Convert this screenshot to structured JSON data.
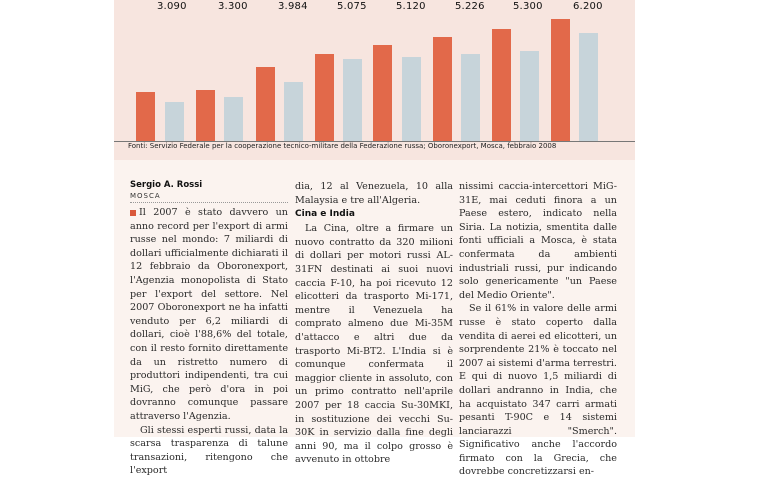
{
  "chart": {
    "values": [
      "3.090",
      "3.300",
      "3.984",
      "5.075",
      "5.120",
      "5.226",
      "5.300",
      "6.200"
    ],
    "source": "Fonti: Servizio Federale per la cooperazione tecnico-militare della Federazione russa; Oboronexport, Mosca, febbraio 2008",
    "colors": {
      "red": "#e2694a",
      "grey": "#c7d4da"
    }
  },
  "article": {
    "author": "Sergio A. Rossi",
    "dateline": "MOSCA",
    "col1": [
      "Il 2007 è stato davvero un anno record per l'export di armi russe nel mondo: 7 miliardi di dollari ufficialmente dichiarati il 12 febbraio da Oboronexport, l'Agenzia monopolista di Stato per l'export del settore. Nel 2007 Oboronexport ne ha infatti venduto per 6,2 miliardi di dollari, cioè l'88,6% del totale, con il resto fornito direttamente da un ristretto numero di produttori indipendenti, tra cui MiG, che però d'ora in poi dovranno comunque passare attraverso l'Agenzia.",
      "Gli stessi esperti russi, data la scarsa trasparenza di talune transazioni, ritengono che l'export"
    ],
    "col2_top": "dia, 12 al Venezuela, 10 alla Malaysia e tre all'Algeria.",
    "subhead": "Cina e India",
    "col2": "La Cina, oltre a firmare un nuovo contratto da 320 milioni di dollari per motori russi AL-31FN destinati ai suoi nuovi caccia F-10, ha poi ricevuto 12 elicotteri da trasporto Mi-171, mentre il Venezuela ha comprato almeno due Mi-35M d'attacco e altri due da trasporto Mi-BT2. L'India si è comunque confermata il maggior cliente in assoluto, con un primo contratto nell'aprile 2007 per 18 caccia Su-30MKI, in sostituzione dei vecchi Su-30K in servizio dalla fine degli anni 90, ma il colpo grosso è avvenuto in ottobre",
    "col3": [
      "nissimi caccia-intercettori MiG-31E, mai ceduti finora a un Paese estero, indicato nella Siria. La notizia, smentita dalle fonti ufficiali a Mosca, è stata confermata da ambienti industriali russi, pur indicando solo genericamente \"un Paese del Medio Oriente\".",
      "Se il 61% in valore delle armi russe è stato coperto dalla vendita di aerei ed elicotteri, un sorprendente 21% è toccato nel 2007 ai sistemi d'arma terrestri. E qui di nuovo 1,5 miliardi di dollari andranno in India, che ha acquistato 347 carri armati pesanti T-90C e 14 sistemi lanciarazzi \"Smerch\". Significativo anche l'accordo firmato con la Grecia, che dovrebbe concretizzarsi en-"
    ]
  }
}
